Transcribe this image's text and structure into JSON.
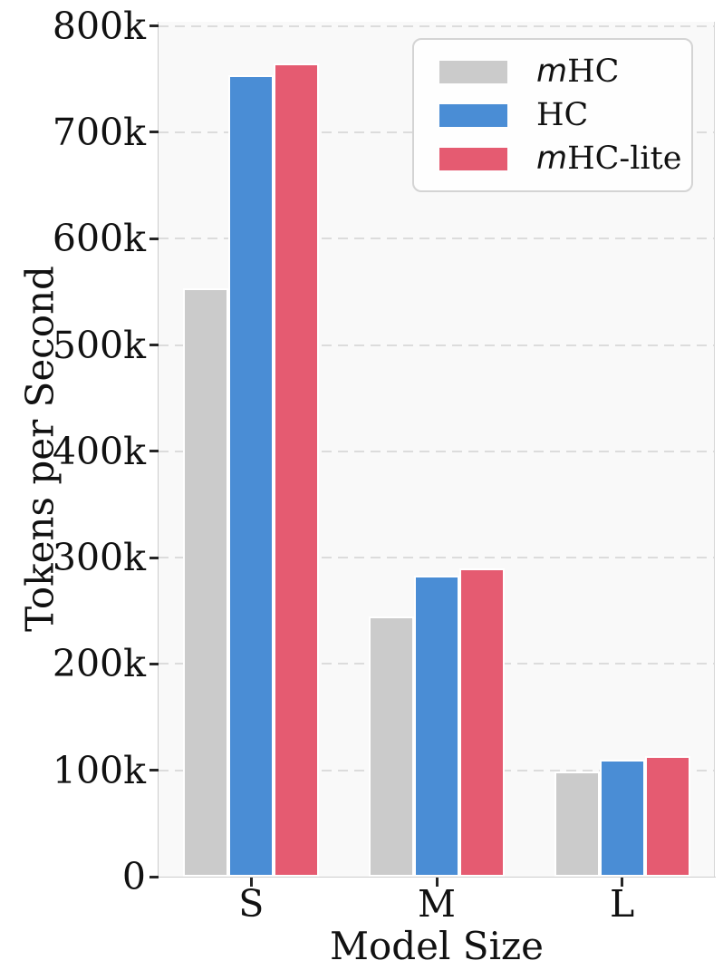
{
  "chart_data": {
    "type": "bar",
    "title": "",
    "xlabel": "Model Size",
    "ylabel": "Tokens per Second",
    "categories": [
      "S",
      "M",
      "L"
    ],
    "series": [
      {
        "name": "mHC",
        "name_italic_prefix": "m",
        "name_rest": "HC",
        "color": "#cbcbcb",
        "values": [
          553000,
          245000,
          99000
        ]
      },
      {
        "name": "HC",
        "name_italic_prefix": "",
        "name_rest": "HC",
        "color": "#4a8dd5",
        "values": [
          754000,
          283000,
          110000
        ]
      },
      {
        "name": "mHC-lite",
        "name_italic_prefix": "m",
        "name_rest": "HC-lite",
        "color": "#e55b71",
        "values": [
          765000,
          290000,
          113000
        ]
      }
    ],
    "ylim": [
      0,
      804000
    ],
    "y_ticks": [
      {
        "value": 0,
        "label": "0"
      },
      {
        "value": 100000,
        "label": "100k"
      },
      {
        "value": 200000,
        "label": "200k"
      },
      {
        "value": 300000,
        "label": "300k"
      },
      {
        "value": 400000,
        "label": "400k"
      },
      {
        "value": 500000,
        "label": "500k"
      },
      {
        "value": 600000,
        "label": "600k"
      },
      {
        "value": 700000,
        "label": "700k"
      },
      {
        "value": 800000,
        "label": "800k"
      }
    ],
    "grid": "horizontal-dashed",
    "legend_position": "upper right",
    "colors": {
      "plot_background": "#f9f9f9",
      "figure_background": "#ffffff",
      "grid_color": "#dcdcdc",
      "spine_color": "#cdcdcd",
      "tick_color": "#262626",
      "text_color": "#111111"
    }
  }
}
